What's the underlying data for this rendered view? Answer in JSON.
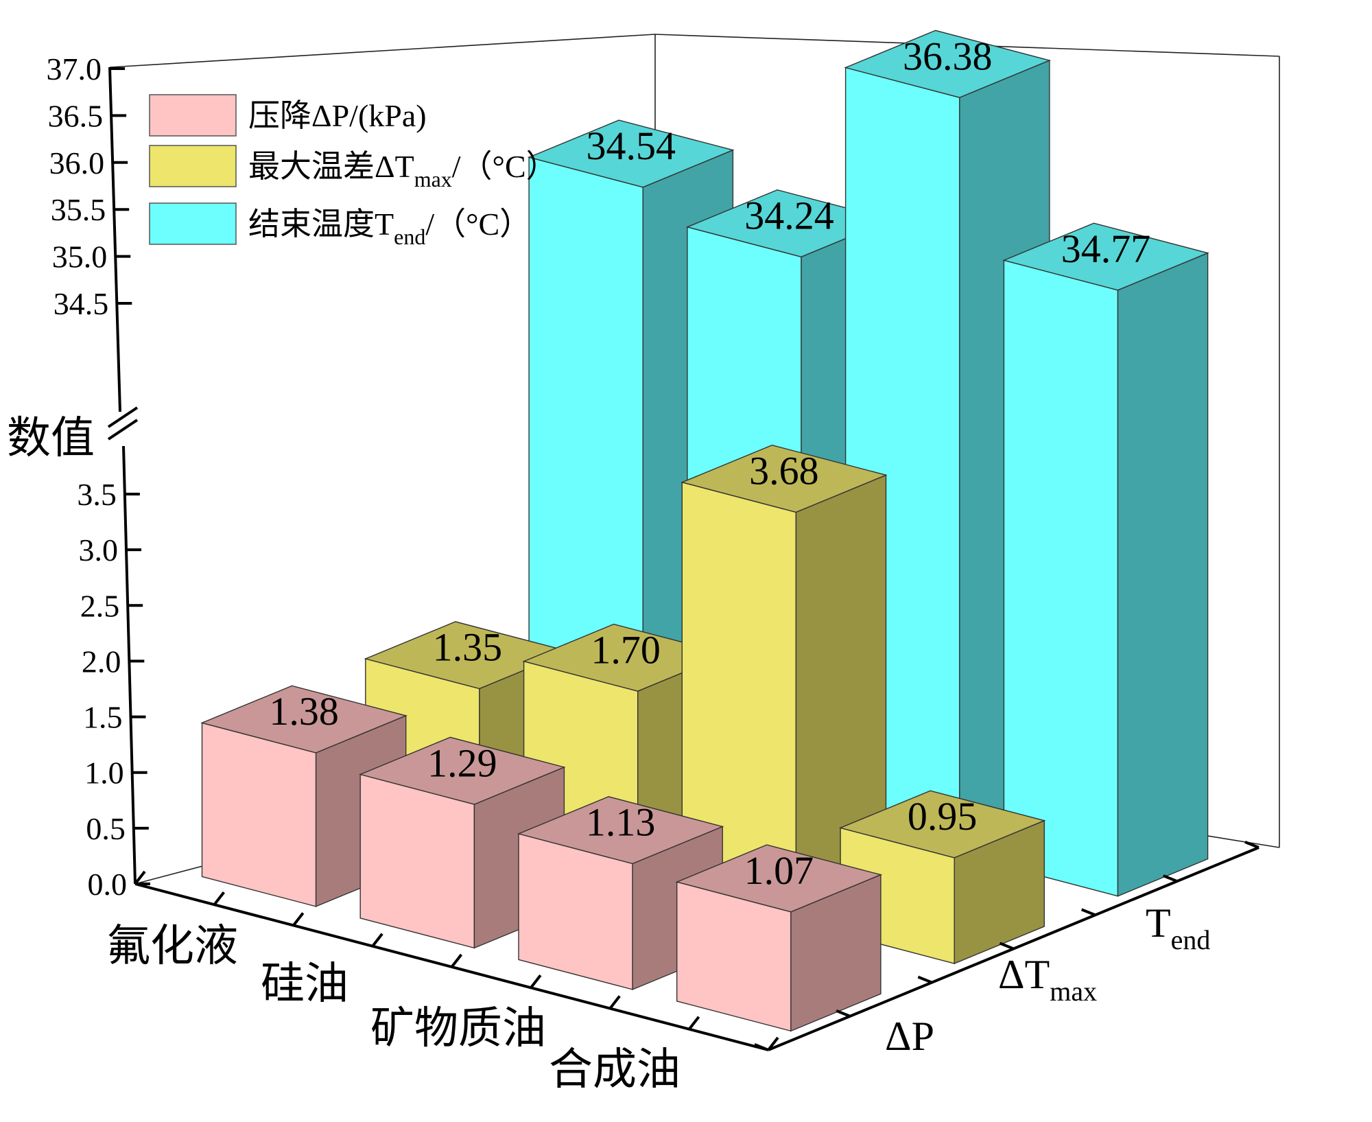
{
  "chart_data": {
    "type": "bar",
    "categories": [
      "氟化液",
      "硅油",
      "矿物质油",
      "合成油"
    ],
    "series": [
      {
        "key": "dp",
        "axis_label": "ΔP",
        "axis_label_main": "ΔP",
        "axis_label_sub": "",
        "legend": "压降ΔP/(kPa)",
        "legend_main": "压降ΔP/(kPa)",
        "legend_sub": "",
        "legend_tail": "",
        "color": "#ffc4c4",
        "side_color": "#a97c7c",
        "top_color": "#c99797",
        "values": [
          1.38,
          1.29,
          1.13,
          1.07
        ],
        "labels": [
          "1.38",
          "1.29",
          "1.13",
          "1.07"
        ]
      },
      {
        "key": "dt",
        "axis_label": "ΔTmax",
        "axis_label_main": "ΔT",
        "axis_label_sub": "max",
        "legend": "最大温差ΔTmax/（°C）",
        "legend_main": "最大温差ΔT",
        "legend_sub": "max",
        "legend_tail": "/（°C）",
        "color": "#ede56c",
        "side_color": "#989243",
        "top_color": "#bdb758",
        "values": [
          1.35,
          1.7,
          3.68,
          0.95
        ],
        "labels": [
          "1.35",
          "1.70",
          "3.68",
          "0.95"
        ]
      },
      {
        "key": "te",
        "axis_label": "Tend",
        "axis_label_main": "T",
        "axis_label_sub": "end",
        "legend": "结束温度Tend/（°C）",
        "legend_main": "结束温度T",
        "legend_sub": "end",
        "legend_tail": "/（°C）",
        "color": "#6dfffd",
        "side_color": "#42a4a6",
        "top_color": "#56d6d6",
        "values": [
          34.54,
          34.24,
          36.38,
          34.77
        ],
        "labels": [
          "34.54",
          "34.24",
          "36.38",
          "34.77"
        ]
      }
    ],
    "ylabel": "数值",
    "y_axis_broken": true,
    "y_lower_range": [
      0,
      4.0
    ],
    "y_upper_range": [
      34.0,
      37.0
    ],
    "y_ticks_lower": [
      "0.0",
      "0.5",
      "1.0",
      "1.5",
      "2.0",
      "2.5",
      "3.0",
      "3.5"
    ],
    "y_ticks_upper": [
      "34.5",
      "35.0",
      "35.5",
      "36.0",
      "36.5",
      "37.0"
    ],
    "legend_position": "top-left",
    "projection": "3d"
  }
}
